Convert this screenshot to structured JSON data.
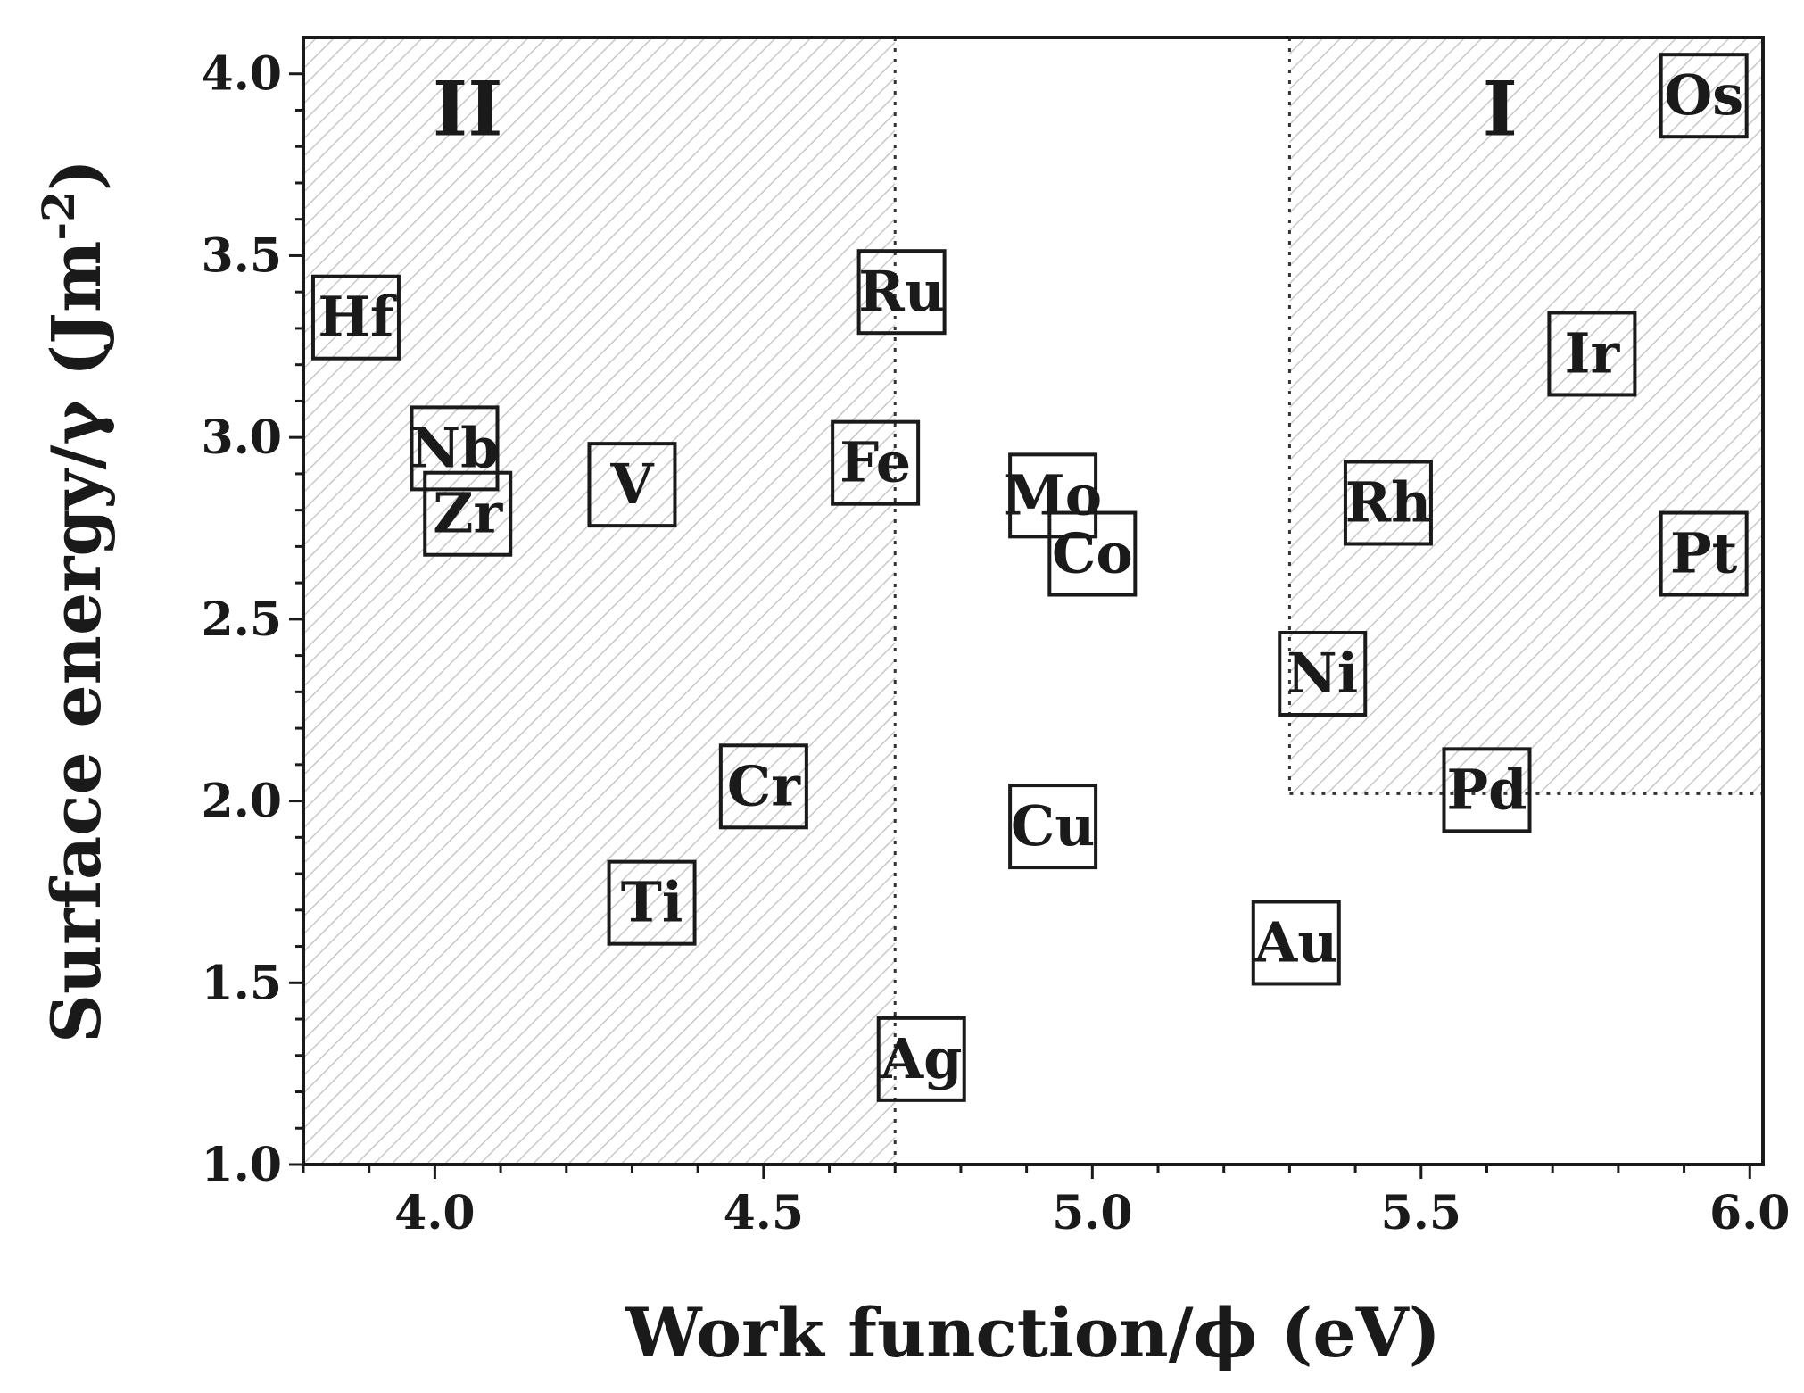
{
  "chart_data": {
    "type": "scatter",
    "xlabel": "Work function/ϕ (eV)",
    "ylabel_main": "Surface energy/γ (Jm",
    "ylabel_sup": "-2",
    "ylabel_close": ")",
    "xlim": [
      3.8,
      6.02
    ],
    "ylim": [
      1.0,
      4.1
    ],
    "xticks": [
      "4.0",
      "4.5",
      "5.0",
      "5.5",
      "6.0"
    ],
    "xtick_values": [
      4.0,
      4.5,
      5.0,
      5.5,
      6.0
    ],
    "yticks": [
      "1.0",
      "1.5",
      "2.0",
      "2.5",
      "3.0",
      "3.5",
      "4.0"
    ],
    "ytick_values": [
      1.0,
      1.5,
      2.0,
      2.5,
      3.0,
      3.5,
      4.0
    ],
    "grid": false,
    "regions": [
      {
        "label": "II",
        "x_range": [
          3.8,
          4.7
        ],
        "y_range": [
          1.0,
          4.1
        ],
        "label_x": 4.05,
        "label_y": 3.9
      },
      {
        "label": "I",
        "x_range": [
          5.3,
          6.02
        ],
        "y_range": [
          2.02,
          4.1
        ],
        "label_x": 5.62,
        "label_y": 3.9
      }
    ],
    "points": [
      {
        "label": "Hf",
        "x": 3.88,
        "y": 3.33
      },
      {
        "label": "Nb",
        "x": 4.03,
        "y": 2.97
      },
      {
        "label": "Zr",
        "x": 4.05,
        "y": 2.79
      },
      {
        "label": "V",
        "x": 4.3,
        "y": 2.87
      },
      {
        "label": "Ti",
        "x": 4.33,
        "y": 1.72
      },
      {
        "label": "Cr",
        "x": 4.5,
        "y": 2.04
      },
      {
        "label": "Fe",
        "x": 4.67,
        "y": 2.93
      },
      {
        "label": "Ru",
        "x": 4.71,
        "y": 3.4
      },
      {
        "label": "Ag",
        "x": 4.74,
        "y": 1.29
      },
      {
        "label": "Mo",
        "x": 4.94,
        "y": 2.84
      },
      {
        "label": "Co",
        "x": 5.0,
        "y": 2.68
      },
      {
        "label": "Cu",
        "x": 4.94,
        "y": 1.93
      },
      {
        "label": "Au",
        "x": 5.31,
        "y": 1.61
      },
      {
        "label": "Ni",
        "x": 5.35,
        "y": 2.35
      },
      {
        "label": "Rh",
        "x": 5.45,
        "y": 2.82
      },
      {
        "label": "Pd",
        "x": 5.6,
        "y": 2.03
      },
      {
        "label": "Ir",
        "x": 5.76,
        "y": 3.23
      },
      {
        "label": "Pt",
        "x": 5.93,
        "y": 2.68
      },
      {
        "label": "Os",
        "x": 5.93,
        "y": 3.94
      }
    ]
  }
}
